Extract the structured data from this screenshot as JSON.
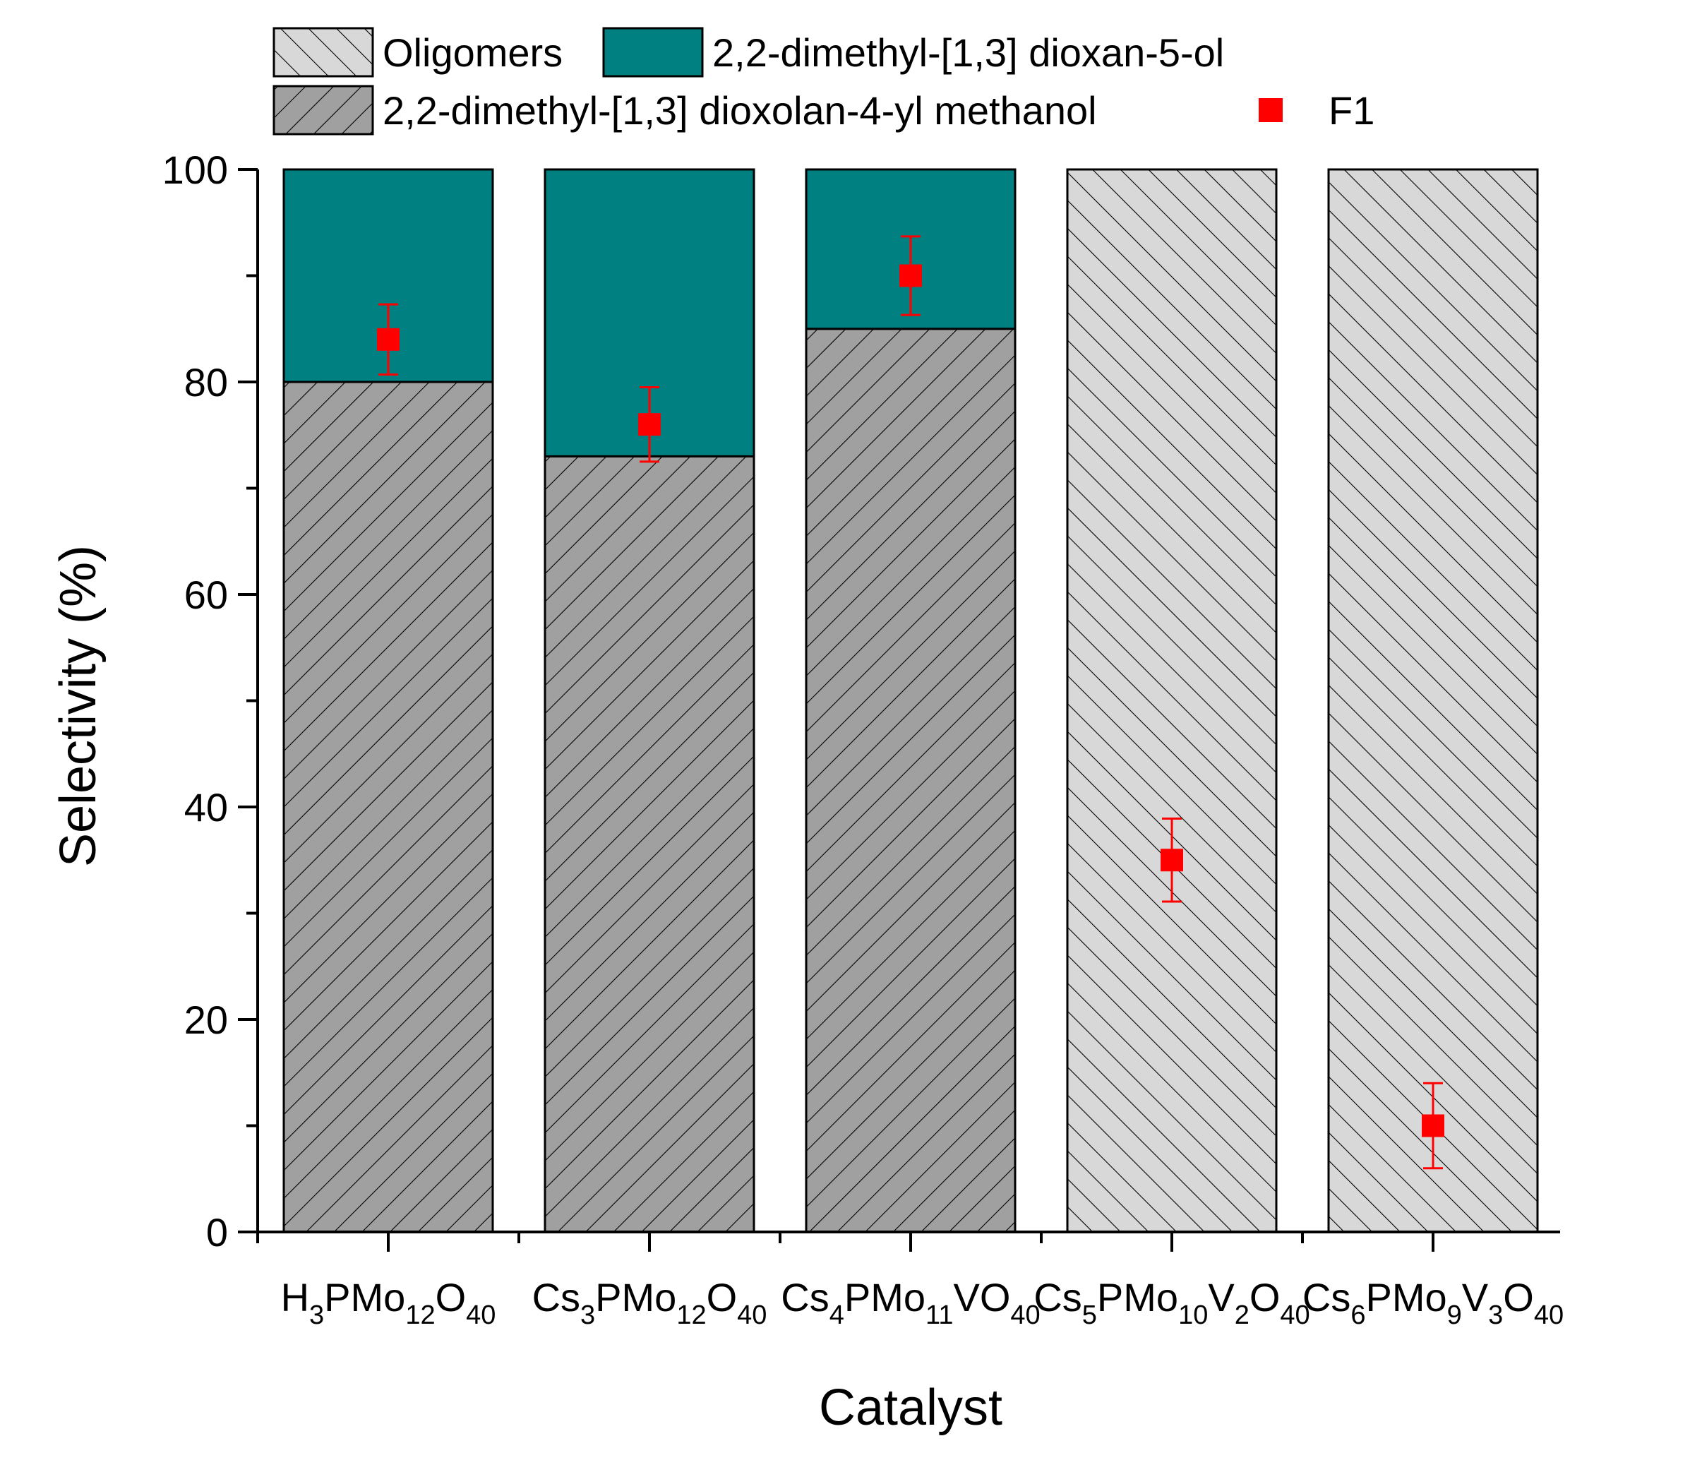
{
  "chart_data": {
    "type": "bar",
    "stacked": true,
    "xlabel": "Catalyst",
    "ylabel": "Selectivity (%)",
    "ylim": [
      0,
      100
    ],
    "yticks": [
      0,
      20,
      40,
      60,
      80,
      100
    ],
    "categories": [
      [
        {
          "t": "H"
        },
        {
          "t": "3",
          "sub": true
        },
        {
          "t": "PMo"
        },
        {
          "t": "12",
          "sub": true
        },
        {
          "t": "O"
        },
        {
          "t": "40",
          "sub": true
        }
      ],
      [
        {
          "t": "Cs"
        },
        {
          "t": "3",
          "sub": true
        },
        {
          "t": "PMo"
        },
        {
          "t": "12",
          "sub": true
        },
        {
          "t": "O"
        },
        {
          "t": "40",
          "sub": true
        }
      ],
      [
        {
          "t": "Cs"
        },
        {
          "t": "4",
          "sub": true
        },
        {
          "t": "PMo"
        },
        {
          "t": "11",
          "sub": true
        },
        {
          "t": "VO"
        },
        {
          "t": "40",
          "sub": true
        }
      ],
      [
        {
          "t": "Cs"
        },
        {
          "t": "5",
          "sub": true
        },
        {
          "t": "PMo"
        },
        {
          "t": "10",
          "sub": true
        },
        {
          "t": "V"
        },
        {
          "t": "2",
          "sub": true
        },
        {
          "t": "O"
        },
        {
          "t": "40",
          "sub": true
        }
      ],
      [
        {
          "t": "Cs"
        },
        {
          "t": "6",
          "sub": true
        },
        {
          "t": "PMo"
        },
        {
          "t": "9",
          "sub": true
        },
        {
          "t": "V"
        },
        {
          "t": "3",
          "sub": true
        },
        {
          "t": "O"
        },
        {
          "t": "40",
          "sub": true
        }
      ]
    ],
    "series": [
      {
        "name": "2,2-dimethyl-[1,3] dioxolan-4-yl methanol",
        "values": [
          80,
          73,
          85,
          0,
          0
        ],
        "fill": "#a0a0a0",
        "hatch": "fwd"
      },
      {
        "name": "2,2-dimethyl-[1,3] dioxan-5-ol",
        "values": [
          20,
          27,
          15,
          0,
          0
        ],
        "fill": "#008080",
        "hatch": "none"
      },
      {
        "name": "Oligomers",
        "values": [
          0,
          0,
          0,
          100,
          100
        ],
        "fill": "#d8d8d8",
        "hatch": "back"
      }
    ],
    "points": {
      "name": "F1",
      "color": "#ff0000",
      "values": [
        84,
        76,
        90,
        35,
        10
      ],
      "errors": [
        3.3,
        3.5,
        3.7,
        3.9,
        4.0
      ]
    },
    "legend": {
      "position": "top",
      "rows": [
        [
          {
            "ref": "Oligomers",
            "label": "Oligomers"
          },
          {
            "ref": "2,2-dimethyl-[1,3] dioxan-5-ol",
            "label": "2,2-dimethyl-[1,3] dioxan-5-ol"
          }
        ],
        [
          {
            "ref": "2,2-dimethyl-[1,3] dioxolan-4-yl methanol",
            "label": "2,2-dimethyl-[1,3] dioxolan-4-yl methanol"
          },
          {
            "ref": "F1",
            "label": "F1"
          }
        ]
      ]
    }
  }
}
